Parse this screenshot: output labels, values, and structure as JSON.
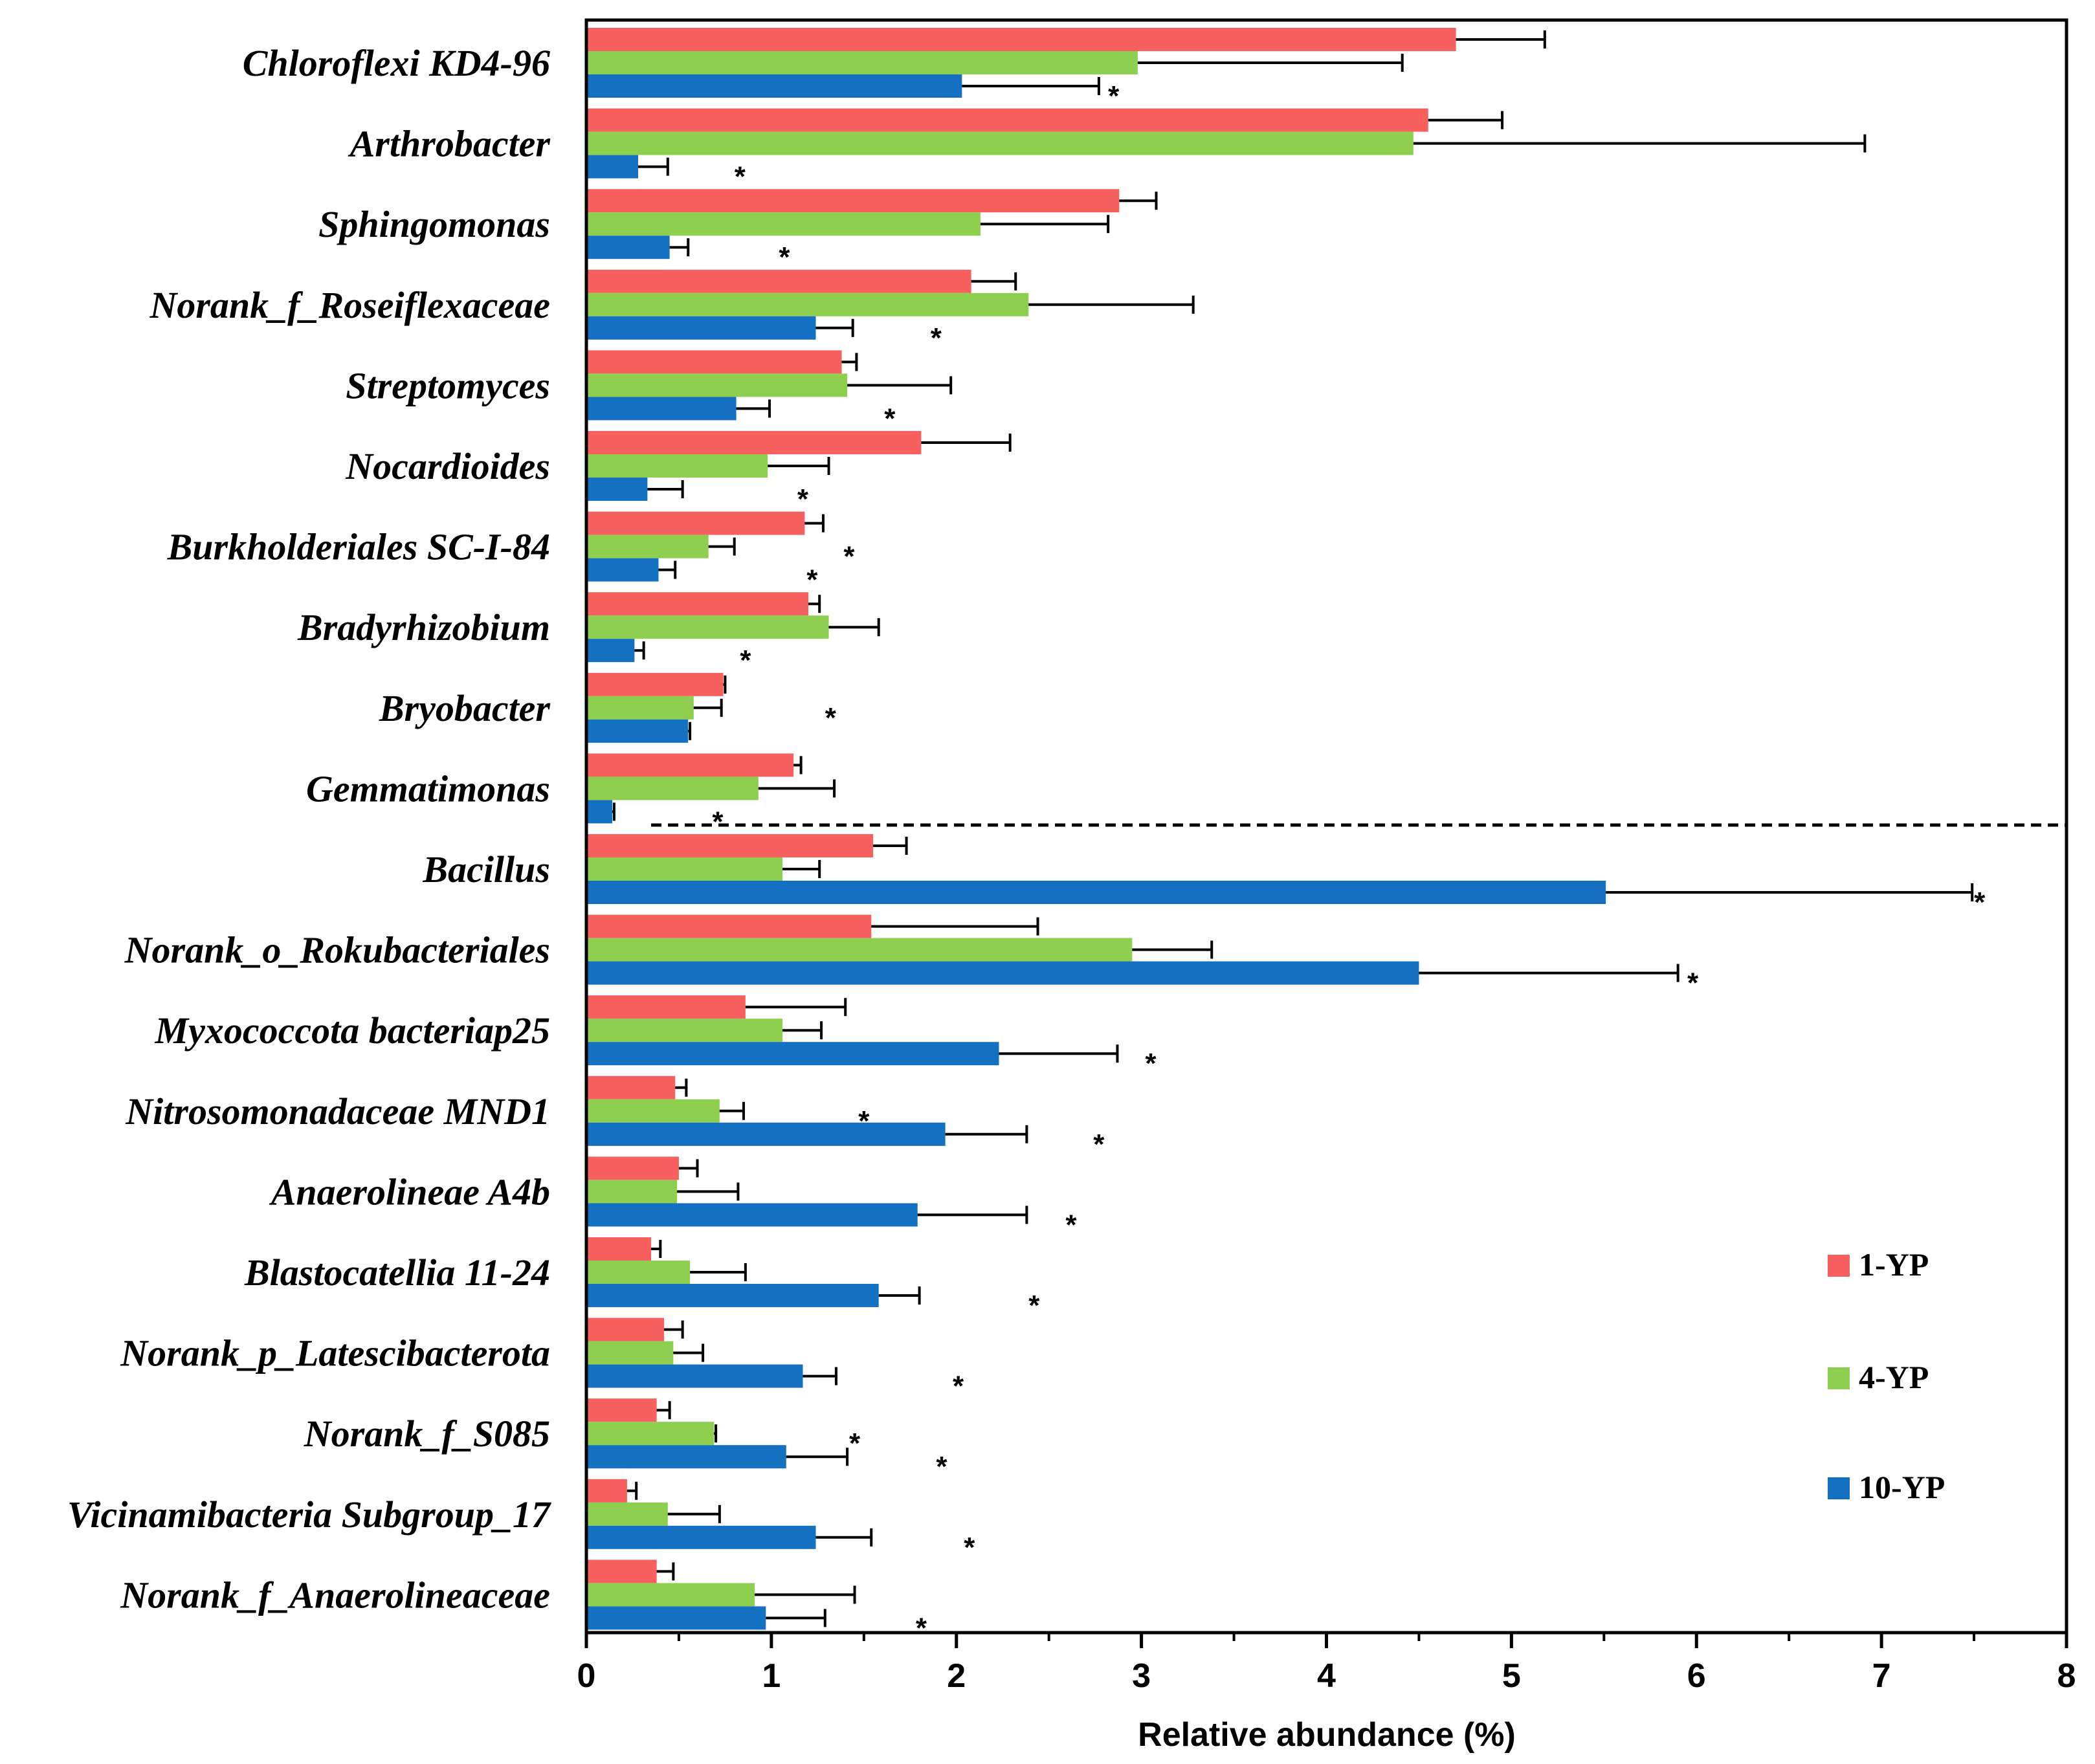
{
  "chart_data": {
    "type": "bar",
    "orientation": "horizontal",
    "categories": [
      "Chloroflexi KD4-96",
      "Arthrobacter",
      "Sphingomonas",
      "Norank_f_Roseiflexaceae",
      "Streptomyces",
      "Nocardioides",
      "Burkholderiales SC-I-84",
      "Bradyrhizobium",
      "Bryobacter",
      "Gemmatimonas",
      "Bacillus",
      "Norank_o_Rokubacteriales",
      "Myxococcota bacteriap25",
      "Nitrosomonadaceae MND1",
      "Anaerolineae A4b",
      "Blastocatellia 11-24",
      "Norank_p_Latescibacterota",
      "Norank_f_S085",
      "Vicinamibacteria Subgroup_17",
      "Norank_f_Anaerolineaceae"
    ],
    "series": [
      {
        "name": "1-YP",
        "color": "#f86060",
        "values": [
          4.7,
          4.55,
          2.88,
          2.08,
          1.38,
          1.81,
          1.18,
          1.2,
          0.74,
          1.12,
          1.55,
          1.54,
          0.86,
          0.48,
          0.5,
          0.35,
          0.42,
          0.38,
          0.22,
          0.38
        ],
        "errors": [
          0.48,
          0.4,
          0.2,
          0.24,
          0.08,
          0.48,
          0.1,
          0.06,
          0.01,
          0.04,
          0.18,
          0.9,
          0.54,
          0.06,
          0.1,
          0.05,
          0.1,
          0.07,
          0.05,
          0.09
        ]
      },
      {
        "name": "4-YP",
        "color": "#8ecf50",
        "values": [
          2.98,
          4.47,
          2.13,
          2.39,
          1.41,
          0.98,
          0.66,
          1.31,
          0.58,
          0.93,
          1.06,
          2.95,
          1.06,
          0.72,
          0.49,
          0.56,
          0.47,
          0.69,
          0.44,
          0.91
        ],
        "errors": [
          1.43,
          2.44,
          0.69,
          0.89,
          0.56,
          0.33,
          0.14,
          0.27,
          0.15,
          0.41,
          0.2,
          0.43,
          0.21,
          0.13,
          0.33,
          0.3,
          0.16,
          0.01,
          0.28,
          0.54
        ]
      },
      {
        "name": "10-YP",
        "color": "#1470c0",
        "values": [
          2.03,
          0.28,
          0.45,
          1.24,
          0.81,
          0.33,
          0.39,
          0.26,
          0.55,
          0.14,
          5.51,
          4.5,
          2.23,
          1.94,
          1.79,
          1.58,
          1.17,
          1.08,
          1.24,
          0.97
        ],
        "errors": [
          0.74,
          0.16,
          0.1,
          0.2,
          0.18,
          0.19,
          0.09,
          0.05,
          0.01,
          0.01,
          1.98,
          1.4,
          0.64,
          0.44,
          0.59,
          0.22,
          0.18,
          0.33,
          0.3,
          0.32
        ]
      }
    ],
    "significance": [
      {
        "category": "Chloroflexi KD4-96",
        "label": "*",
        "series": "10-YP",
        "x": 2.85
      },
      {
        "category": "Arthrobacter",
        "label": "*",
        "series": "10-YP",
        "x": 0.83
      },
      {
        "category": "Sphingomonas",
        "label": "*",
        "series": "10-YP",
        "x": 1.07
      },
      {
        "category": "Norank_f_Roseiflexaceae",
        "label": "*",
        "series": "10-YP",
        "x": 1.89
      },
      {
        "category": "Streptomyces",
        "label": "*",
        "series": "10-YP",
        "x": 1.64
      },
      {
        "category": "Nocardioides",
        "label": "*",
        "series": "10-YP",
        "x": 1.17
      },
      {
        "category": "Burkholderiales SC-I-84",
        "label": "*",
        "series": "4-YP",
        "x": 1.42
      },
      {
        "category": "Burkholderiales SC-I-84",
        "label": "*",
        "series": "10-YP",
        "x": 1.22
      },
      {
        "category": "Bradyrhizobium",
        "label": "*",
        "series": "10-YP",
        "x": 0.86
      },
      {
        "category": "Bryobacter",
        "label": "*",
        "series": "4-YP",
        "x": 1.32
      },
      {
        "category": "Gemmatimonas",
        "label": "*",
        "series": "10-YP",
        "x": 0.71
      },
      {
        "category": "Bacillus",
        "label": "*",
        "series": "10-YP",
        "x": 7.53
      },
      {
        "category": "Norank_o_Rokubacteriales",
        "label": "*",
        "series": "10-YP",
        "x": 5.98
      },
      {
        "category": "Myxococcota bacteriap25",
        "label": "*",
        "series": "10-YP",
        "x": 3.05
      },
      {
        "category": "Nitrosomonadaceae MND1",
        "label": "*",
        "series": "4-YP",
        "x": 1.5
      },
      {
        "category": "Nitrosomonadaceae MND1",
        "label": "*",
        "series": "10-YP",
        "x": 2.77
      },
      {
        "category": "Anaerolineae A4b",
        "label": "*",
        "series": "10-YP",
        "x": 2.62
      },
      {
        "category": "Blastocatellia 11-24",
        "label": "*",
        "series": "10-YP",
        "x": 2.42
      },
      {
        "category": "Norank_p_Latescibacterota",
        "label": "*",
        "series": "10-YP",
        "x": 2.01
      },
      {
        "category": "Norank_f_S085",
        "label": "*",
        "series": "4-YP",
        "x": 1.45
      },
      {
        "category": "Norank_f_S085",
        "label": "*",
        "series": "10-YP",
        "x": 1.92
      },
      {
        "category": "Vicinamibacteria Subgroup_17",
        "label": "*",
        "series": "10-YP",
        "x": 2.07
      },
      {
        "category": "Norank_f_Anaerolineaceae",
        "label": "*",
        "series": "10-YP",
        "x": 1.81
      }
    ],
    "xlabel": "Relative abundance  (%)",
    "ylabel": "",
    "xlim": [
      0,
      8
    ],
    "xticks": [
      "0",
      "1",
      "2",
      "3",
      "4",
      "5",
      "6",
      "7",
      "8"
    ],
    "grid": false,
    "legend_position": "lower-right",
    "divider": {
      "style": "dashed",
      "between": [
        "Gemmatimonas",
        "Bacillus"
      ]
    }
  }
}
